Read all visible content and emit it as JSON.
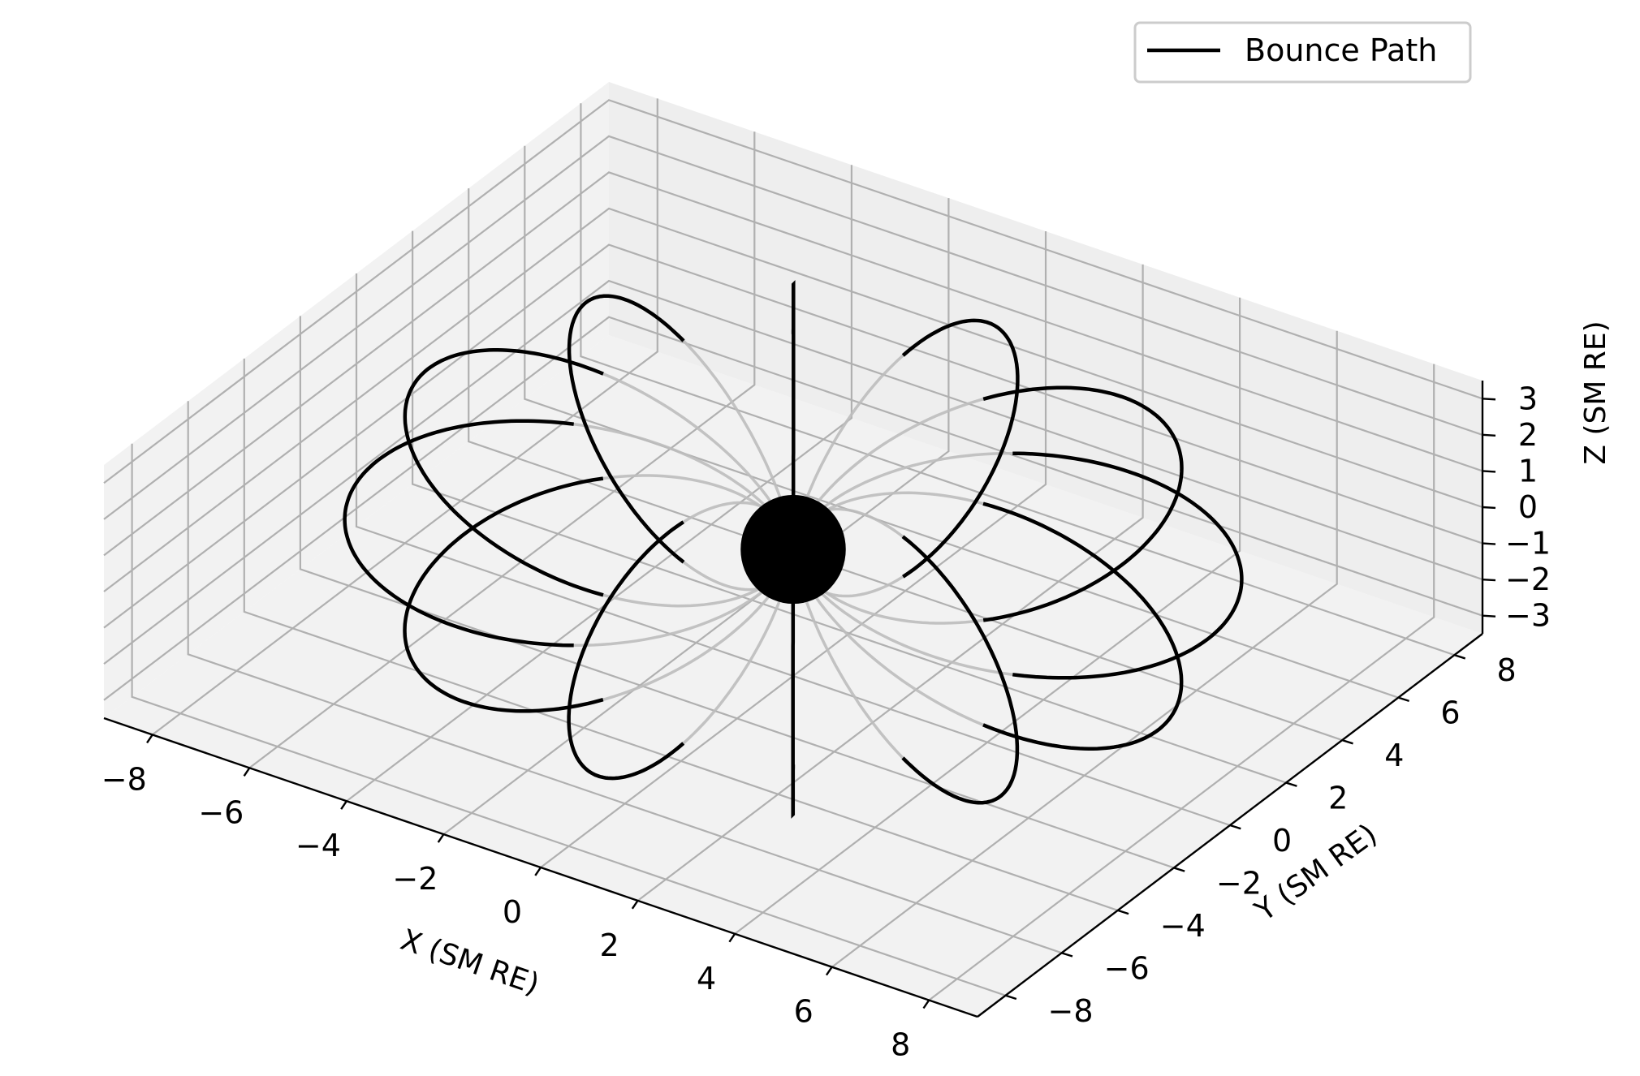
{
  "chart_data": {
    "type": "line3d",
    "title": "",
    "xlabel": "X (SM RE)",
    "ylabel": "Y (SM RE)",
    "zlabel": "Z (SM RE)",
    "xlim": [
      -9,
      9
    ],
    "ylim": [
      -9,
      9
    ],
    "zlim": [
      -3.5,
      3.5
    ],
    "xticks": [
      -8,
      -6,
      -4,
      -2,
      0,
      2,
      4,
      6,
      8
    ],
    "yticks": [
      -8,
      -6,
      -4,
      -2,
      0,
      2,
      4,
      6,
      8
    ],
    "zticks": [
      -3,
      -2,
      -1,
      0,
      1,
      2,
      3
    ],
    "xtick_labels": [
      "−8",
      "−6",
      "−4",
      "−2",
      "0",
      "2",
      "4",
      "6",
      "8"
    ],
    "ytick_labels": [
      "−8",
      "−6",
      "−4",
      "−2",
      "0",
      "2",
      "4",
      "6",
      "8"
    ],
    "ztick_labels": [
      "−3",
      "−2",
      "−1",
      "0",
      "1",
      "2",
      "3"
    ],
    "grid": true,
    "legend": {
      "position": "top-right",
      "entries": [
        "Bounce Path"
      ]
    },
    "series": [
      {
        "name": "",
        "kind": "dipole field lines",
        "L_shell": 8,
        "longitudes_deg": [
          0,
          30,
          60,
          90,
          120,
          150,
          180,
          210,
          240,
          270,
          300,
          330
        ],
        "color": "#bdbdbd"
      },
      {
        "name": "Bounce Path",
        "kind": "bounce segments",
        "L_shell": 8,
        "longitudes_deg": [
          0,
          30,
          60,
          90,
          120,
          150,
          180,
          210,
          240,
          270,
          300,
          330
        ],
        "mirror_latitude_deg": 38,
        "color": "#000000"
      }
    ],
    "earth": {
      "radius": 1,
      "color": "#000000"
    }
  }
}
